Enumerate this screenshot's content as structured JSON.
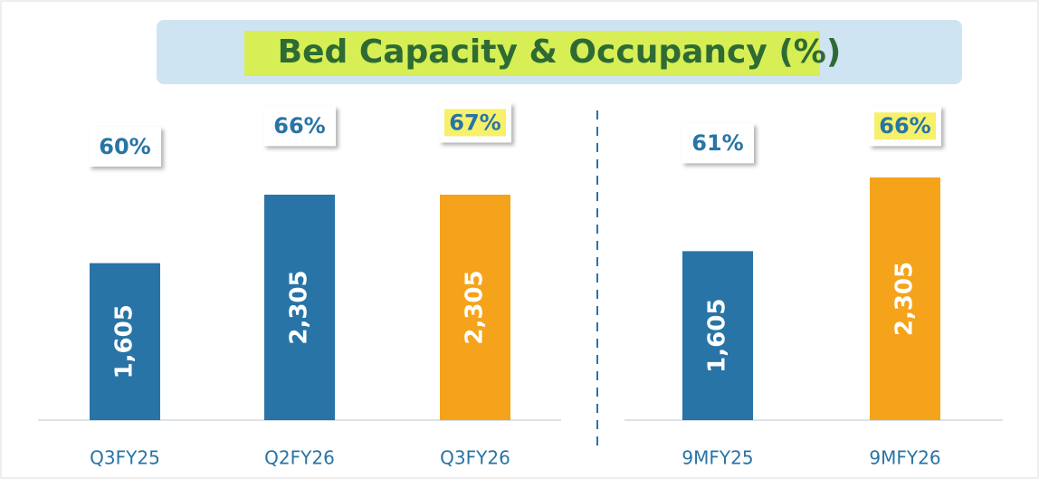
{
  "chart_data": {
    "type": "bar",
    "title": "Bed Capacity & Occupancy (%)",
    "panels": [
      {
        "categories": [
          "Q3FY25",
          "Q2FY26",
          "Q3FY26"
        ],
        "values": [
          1605,
          2305,
          2305
        ],
        "value_labels": [
          "1,605",
          "2,305",
          "2,305"
        ],
        "colors": [
          "#2874a6",
          "#2874a6",
          "#f5a31a"
        ],
        "occupancy": [
          60,
          66,
          67
        ],
        "occupancy_labels": [
          "60%",
          "66%",
          "67%"
        ]
      },
      {
        "categories": [
          "9MFY25",
          "9MFY26"
        ],
        "values": [
          1605,
          2305
        ],
        "value_labels": [
          "1,605",
          "2,305"
        ],
        "colors": [
          "#2874a6",
          "#f5a31a"
        ],
        "occupancy": [
          61,
          66
        ],
        "occupancy_labels": [
          "61%",
          "66%"
        ]
      }
    ]
  }
}
